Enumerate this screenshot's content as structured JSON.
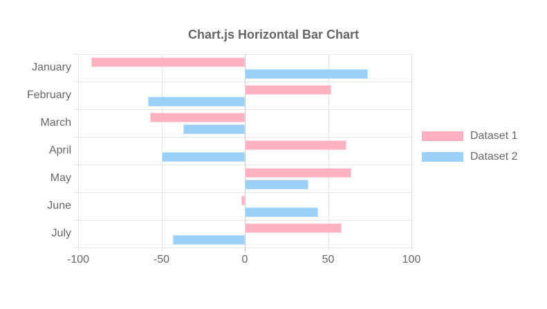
{
  "chart_data": {
    "type": "bar",
    "orientation": "horizontal",
    "title": "Chart.js Horizontal Bar Chart",
    "categories": [
      "January",
      "February",
      "March",
      "April",
      "May",
      "June",
      "July"
    ],
    "series": [
      {
        "name": "Dataset 1",
        "color": "#ffb1c1",
        "border_color": "#ffd4dd",
        "values": [
          -92,
          52,
          -57,
          61,
          64,
          -2,
          58
        ]
      },
      {
        "name": "Dataset 2",
        "color": "#9ad0f5",
        "border_color": "#c3e3f9",
        "values": [
          74,
          -58,
          -37,
          -50,
          38,
          44,
          -43
        ]
      }
    ],
    "x_ticks": [
      -100,
      -50,
      0,
      50,
      100
    ],
    "xlim": [
      -100,
      100
    ],
    "grid": true,
    "legend_position": "right",
    "colors": {
      "grid": "#e6e6e6",
      "zero_line": "#c8c8c8",
      "text": "#666666",
      "background": "#ffffff"
    }
  }
}
